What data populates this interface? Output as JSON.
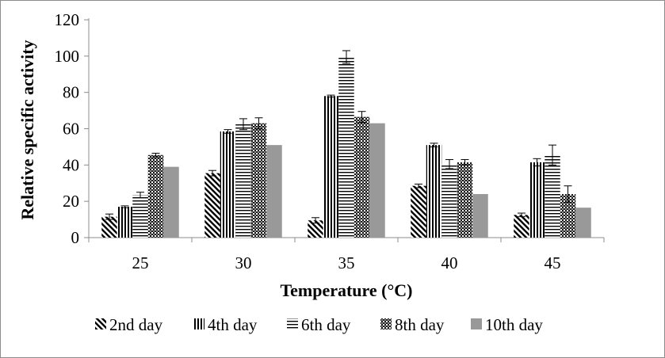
{
  "chart_data": {
    "type": "bar",
    "title": "",
    "xlabel": "Temperature (°C)",
    "ylabel": "Relative specific activity",
    "categories": [
      "25",
      "30",
      "35",
      "40",
      "45"
    ],
    "ylim": [
      0,
      120
    ],
    "yticks": [
      0,
      20,
      40,
      60,
      80,
      100,
      120
    ],
    "grid": false,
    "legend_position": "bottom",
    "series": [
      {
        "name": "2nd day",
        "pattern": "diagonal",
        "values": [
          11.5,
          35.5,
          9.5,
          28.5,
          12.5
        ],
        "errors": [
          1.5,
          1.5,
          1.5,
          1.0,
          1.0
        ]
      },
      {
        "name": "4th day",
        "pattern": "vertical",
        "values": [
          17,
          58.5,
          78,
          51,
          41.5
        ],
        "errors": [
          0.5,
          1.0,
          0.5,
          1.0,
          2.0
        ]
      },
      {
        "name": "6th day",
        "pattern": "horizontal",
        "values": [
          23.5,
          62.5,
          99.5,
          40.5,
          45.5
        ],
        "errors": [
          1.5,
          3.0,
          3.5,
          2.5,
          5.5
        ]
      },
      {
        "name": "8th day",
        "pattern": "checker",
        "values": [
          45.5,
          63,
          66.5,
          41.5,
          24
        ],
        "errors": [
          1.0,
          3.0,
          3.0,
          1.5,
          4.5
        ]
      },
      {
        "name": "10th day",
        "pattern": "solid",
        "values": [
          39,
          51,
          63,
          24,
          16.5
        ],
        "errors": [
          0,
          0,
          0,
          0,
          0
        ]
      }
    ],
    "colors": {
      "solid_fill": "#999999",
      "stroke": "#000000",
      "axis": "#8c8c8c"
    }
  }
}
